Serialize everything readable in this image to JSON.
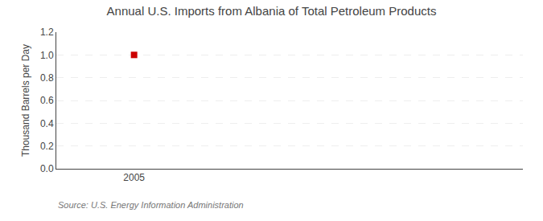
{
  "chart_data": {
    "type": "scatter",
    "title": "Annual U.S. Imports from Albania of Total Petroleum Products",
    "ylabel": "Thousand Barrels per Day",
    "source": "Source: U.S. Energy Information Administration",
    "x": [
      2005
    ],
    "values": [
      1.0
    ],
    "color": "#cc0000",
    "marker": "square",
    "xlim": [
      2004.7,
      2006.5
    ],
    "xticks": [
      2005
    ],
    "ylim": [
      0.0,
      1.2
    ],
    "yticks": [
      {
        "value": 0.0,
        "label": "0.0"
      },
      0.2,
      0.4,
      0.6,
      0.8,
      {
        "value": 1.0,
        "label": "1.0"
      },
      1.2
    ],
    "grid": true
  }
}
